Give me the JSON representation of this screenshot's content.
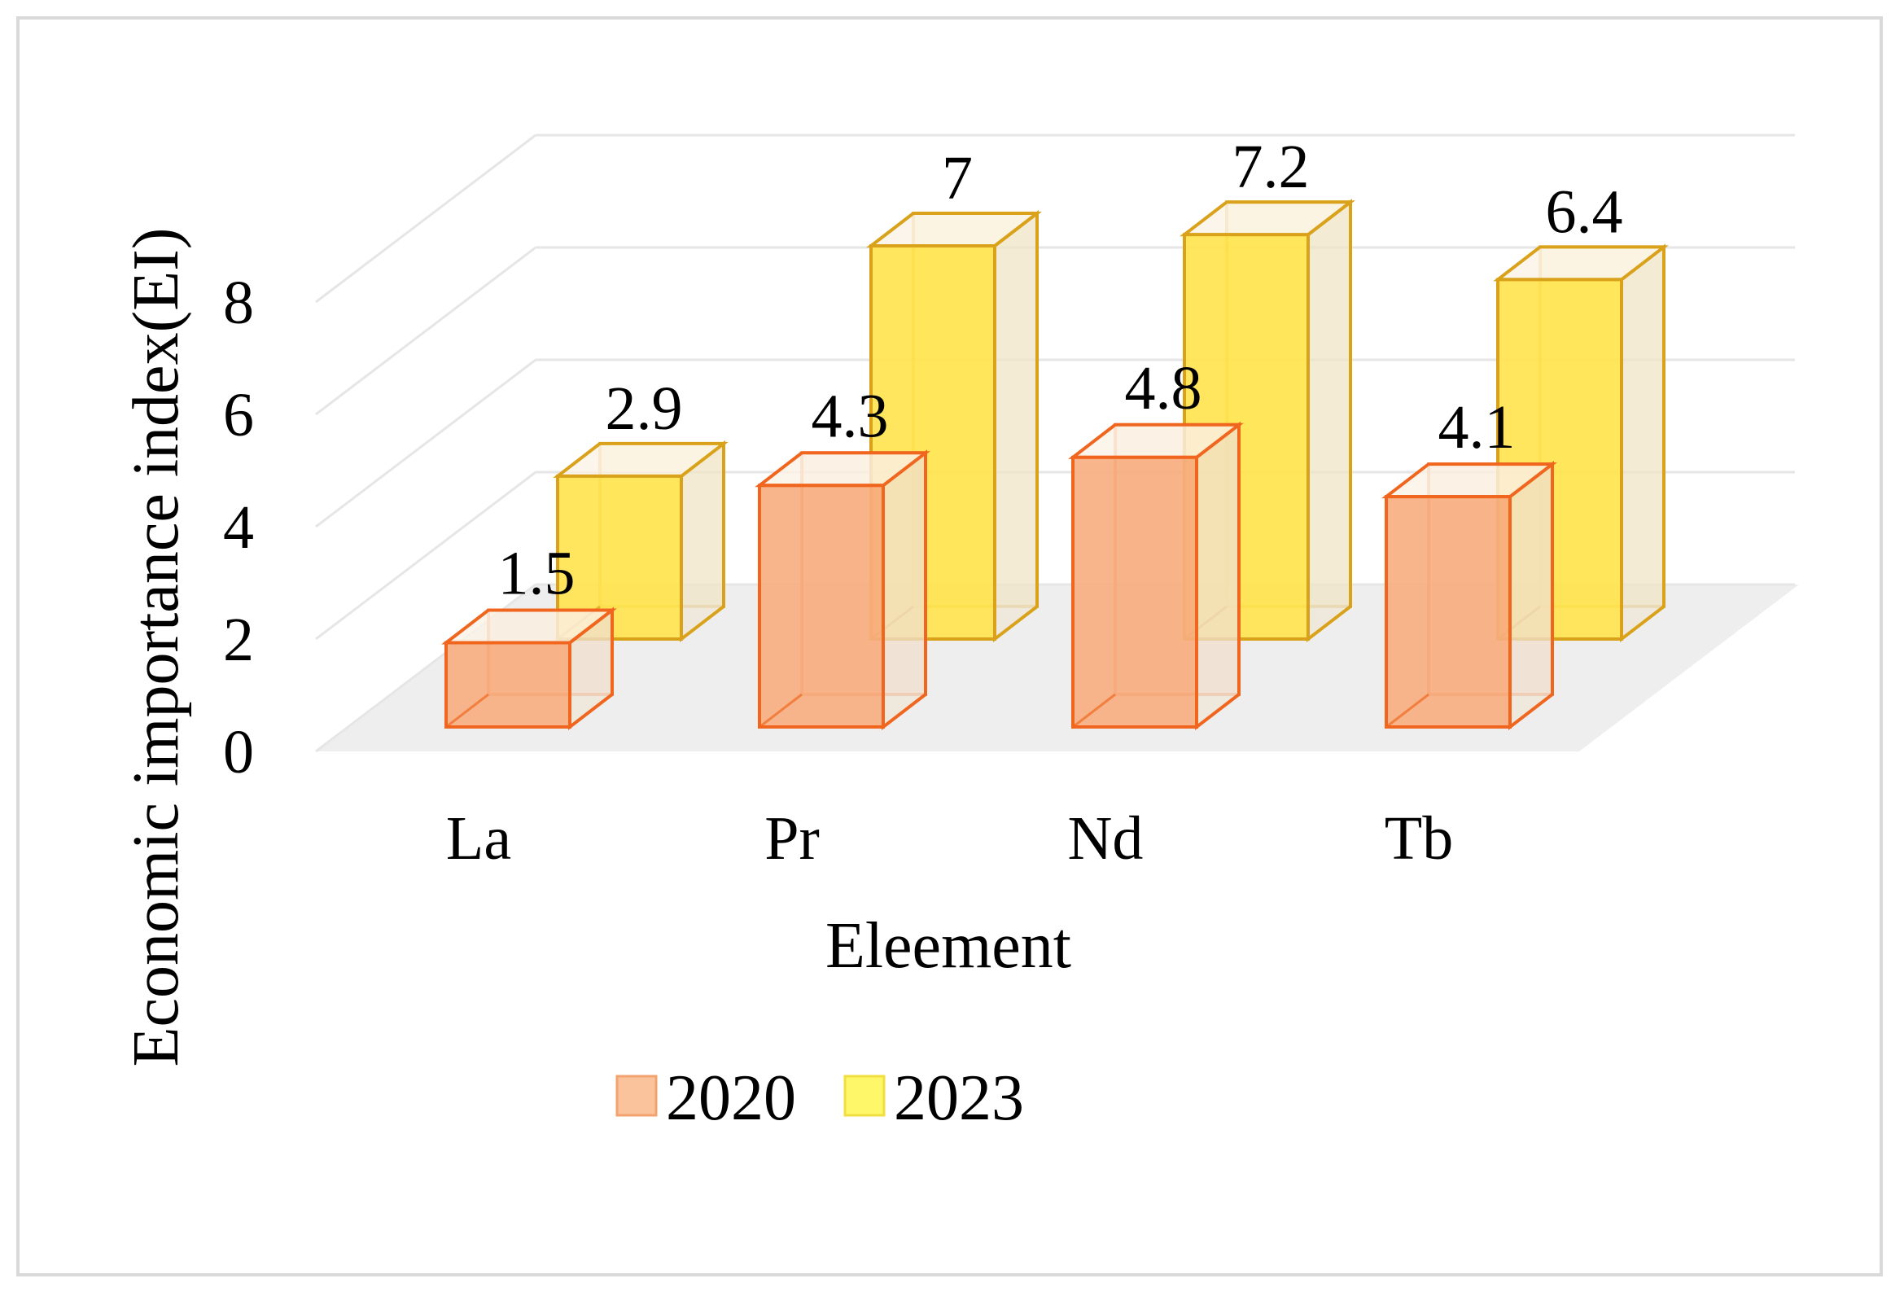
{
  "chart_data": {
    "type": "bar",
    "style": "3d-clustered-column",
    "title": "",
    "xlabel": "Eleement",
    "ylabel": "Economic importance index(EI)",
    "categories": [
      "La",
      "Pr",
      "Nd",
      "Tb"
    ],
    "ylim": [
      0,
      8
    ],
    "yticks": [
      "0",
      "2",
      "4",
      "6",
      "8"
    ],
    "grid": true,
    "legend_position": "bottom",
    "series": [
      {
        "name": "2020",
        "values": [
          1.5,
          4.3,
          4.8,
          4.1
        ],
        "labels": [
          "1.5",
          "4.3",
          "4.8",
          "4.1"
        ],
        "fill": "#f7ad7e",
        "edge": "#f0661f"
      },
      {
        "name": "2023",
        "values": [
          2.9,
          7,
          7.2,
          6.4
        ],
        "labels": [
          "2.9",
          "7",
          "7.2",
          "6.4"
        ],
        "fill": "#ffe34d",
        "edge": "#d9a21a"
      }
    ]
  }
}
